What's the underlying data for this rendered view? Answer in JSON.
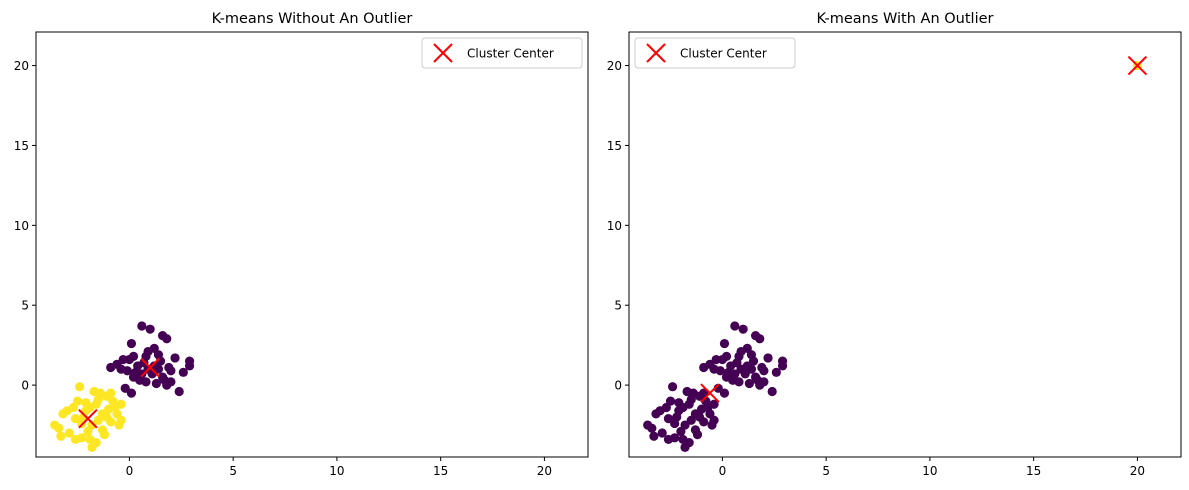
{
  "chart_data": [
    {
      "type": "scatter",
      "title": "K-means Without An Outlier",
      "xlim": [
        -4.5,
        22.1
      ],
      "ylim": [
        -4.5,
        22.1
      ],
      "xticks": [
        0,
        5,
        10,
        15,
        20
      ],
      "yticks": [
        0,
        5,
        10,
        15,
        20
      ],
      "legend": {
        "label": "Cluster Center",
        "position": "top-right"
      },
      "series": [
        {
          "color": "#440154",
          "points": [
            [
              0.2,
              0.5
            ],
            [
              0.8,
              1.8
            ],
            [
              1.2,
              2.3
            ],
            [
              1.6,
              3.1
            ],
            [
              1.0,
              3.5
            ],
            [
              0.6,
              3.7
            ],
            [
              1.8,
              2.9
            ],
            [
              2.2,
              1.7
            ],
            [
              2.9,
              1.5
            ],
            [
              2.9,
              1.2
            ],
            [
              2.4,
              -0.4
            ],
            [
              2.0,
              0.2
            ],
            [
              1.3,
              0.1
            ],
            [
              0.8,
              0.2
            ],
            [
              0.1,
              -0.5
            ],
            [
              -0.2,
              -0.2
            ],
            [
              -0.4,
              1.0
            ],
            [
              -0.9,
              1.1
            ],
            [
              -0.6,
              1.3
            ],
            [
              0.0,
              1.6
            ],
            [
              0.1,
              2.6
            ],
            [
              0.4,
              1.2
            ],
            [
              1.4,
              1.0
            ],
            [
              1.9,
              1.1
            ],
            [
              1.5,
              1.5
            ],
            [
              2.0,
              0.9
            ],
            [
              1.1,
              0.7
            ],
            [
              0.3,
              0.8
            ],
            [
              0.9,
              1.0
            ],
            [
              1.6,
              0.5
            ],
            [
              0.7,
              1.4
            ],
            [
              1.2,
              1.2
            ],
            [
              -0.1,
              0.9
            ],
            [
              0.5,
              0.3
            ],
            [
              1.8,
              0.0
            ],
            [
              2.6,
              0.8
            ],
            [
              0.2,
              1.8
            ],
            [
              1.4,
              1.9
            ],
            [
              0.9,
              2.1
            ],
            [
              -0.3,
              1.6
            ],
            [
              1.7,
              0.3
            ],
            [
              0.6,
              0.7
            ]
          ]
        },
        {
          "color": "#fde725",
          "points": [
            [
              -4.7,
              -1.1
            ],
            [
              -3.6,
              -2.5
            ],
            [
              -3.4,
              -2.7
            ],
            [
              -3.2,
              -1.8
            ],
            [
              -3.0,
              -1.6
            ],
            [
              -2.9,
              -3.0
            ],
            [
              -2.6,
              -3.4
            ],
            [
              -2.5,
              -1.0
            ],
            [
              -2.4,
              -0.1
            ],
            [
              -2.3,
              -2.4
            ],
            [
              -2.2,
              -2.0
            ],
            [
              -2.1,
              -1.6
            ],
            [
              -2.0,
              -2.9
            ],
            [
              -1.9,
              -3.4
            ],
            [
              -1.8,
              -3.9
            ],
            [
              -1.7,
              -0.4
            ],
            [
              -1.6,
              -1.2
            ],
            [
              -1.5,
              -2.2
            ],
            [
              -1.4,
              -0.5
            ],
            [
              -1.3,
              -1.8
            ],
            [
              -1.2,
              -3.1
            ],
            [
              -1.1,
              -0.7
            ],
            [
              -1.0,
              -1.5
            ],
            [
              -0.9,
              -2.3
            ],
            [
              -0.8,
              -1.0
            ],
            [
              -0.7,
              -1.4
            ],
            [
              -0.4,
              -2.2
            ],
            [
              -0.4,
              -1.2
            ],
            [
              -0.5,
              -2.5
            ],
            [
              -1.6,
              -3.6
            ],
            [
              -2.7,
              -1.4
            ],
            [
              -2.1,
              -1.1
            ],
            [
              -1.8,
              -2.5
            ],
            [
              -1.3,
              -2.8
            ],
            [
              -0.9,
              -0.5
            ],
            [
              -2.3,
              -3.3
            ],
            [
              -2.6,
              -2.1
            ],
            [
              -1.1,
              -2.0
            ],
            [
              -1.5,
              -0.9
            ],
            [
              -0.6,
              -1.8
            ],
            [
              -3.3,
              -3.2
            ],
            [
              -1.9,
              -1.4
            ]
          ]
        }
      ],
      "centers": [
        [
          -2.0,
          -2.1
        ],
        [
          1.0,
          1.1
        ]
      ]
    },
    {
      "type": "scatter",
      "title": "K-means With An Outlier",
      "xlim": [
        -4.5,
        22.1
      ],
      "ylim": [
        -4.5,
        22.1
      ],
      "xticks": [
        0,
        5,
        10,
        15,
        20
      ],
      "yticks": [
        0,
        5,
        10,
        15,
        20
      ],
      "legend": {
        "label": "Cluster Center",
        "position": "top-left"
      },
      "series": [
        {
          "color": "#440154",
          "points": [
            [
              0.2,
              0.5
            ],
            [
              0.8,
              1.8
            ],
            [
              1.2,
              2.3
            ],
            [
              1.6,
              3.1
            ],
            [
              1.0,
              3.5
            ],
            [
              0.6,
              3.7
            ],
            [
              1.8,
              2.9
            ],
            [
              2.2,
              1.7
            ],
            [
              2.9,
              1.5
            ],
            [
              2.9,
              1.2
            ],
            [
              2.4,
              -0.4
            ],
            [
              2.0,
              0.2
            ],
            [
              1.3,
              0.1
            ],
            [
              0.8,
              0.2
            ],
            [
              0.1,
              -0.5
            ],
            [
              -0.2,
              -0.2
            ],
            [
              -0.4,
              1.0
            ],
            [
              -0.9,
              1.1
            ],
            [
              -0.6,
              1.3
            ],
            [
              0.0,
              1.6
            ],
            [
              0.1,
              2.6
            ],
            [
              0.4,
              1.2
            ],
            [
              1.4,
              1.0
            ],
            [
              1.9,
              1.1
            ],
            [
              1.5,
              1.5
            ],
            [
              2.0,
              0.9
            ],
            [
              1.1,
              0.7
            ],
            [
              0.3,
              0.8
            ],
            [
              0.9,
              1.0
            ],
            [
              1.6,
              0.5
            ],
            [
              0.7,
              1.4
            ],
            [
              1.2,
              1.2
            ],
            [
              -0.1,
              0.9
            ],
            [
              0.5,
              0.3
            ],
            [
              1.8,
              0.0
            ],
            [
              2.6,
              0.8
            ],
            [
              0.2,
              1.8
            ],
            [
              1.4,
              1.9
            ],
            [
              0.9,
              2.1
            ],
            [
              -0.3,
              1.6
            ],
            [
              1.7,
              0.3
            ],
            [
              0.6,
              0.7
            ],
            [
              -4.7,
              -1.1
            ],
            [
              -3.6,
              -2.5
            ],
            [
              -3.4,
              -2.7
            ],
            [
              -3.2,
              -1.8
            ],
            [
              -3.0,
              -1.6
            ],
            [
              -2.9,
              -3.0
            ],
            [
              -2.6,
              -3.4
            ],
            [
              -2.5,
              -1.0
            ],
            [
              -2.4,
              -0.1
            ],
            [
              -2.3,
              -2.4
            ],
            [
              -2.2,
              -2.0
            ],
            [
              -2.1,
              -1.6
            ],
            [
              -2.0,
              -2.9
            ],
            [
              -1.9,
              -3.4
            ],
            [
              -1.8,
              -3.9
            ],
            [
              -1.7,
              -0.4
            ],
            [
              -1.6,
              -1.2
            ],
            [
              -1.5,
              -2.2
            ],
            [
              -1.4,
              -0.5
            ],
            [
              -1.3,
              -1.8
            ],
            [
              -1.2,
              -3.1
            ],
            [
              -1.1,
              -0.7
            ],
            [
              -1.0,
              -1.5
            ],
            [
              -0.9,
              -2.3
            ],
            [
              -0.8,
              -1.0
            ],
            [
              -0.7,
              -1.4
            ],
            [
              -0.4,
              -2.2
            ],
            [
              -0.4,
              -1.2
            ],
            [
              -0.5,
              -2.5
            ],
            [
              -1.6,
              -3.6
            ],
            [
              -2.7,
              -1.4
            ],
            [
              -2.1,
              -1.1
            ],
            [
              -1.8,
              -2.5
            ],
            [
              -1.3,
              -2.8
            ],
            [
              -0.9,
              -0.5
            ],
            [
              -2.3,
              -3.3
            ],
            [
              -2.6,
              -2.1
            ],
            [
              -1.1,
              -2.0
            ],
            [
              -1.5,
              -0.9
            ],
            [
              -0.6,
              -1.8
            ],
            [
              -3.3,
              -3.2
            ],
            [
              -1.9,
              -1.4
            ]
          ]
        },
        {
          "color": "#fde725",
          "points": [
            [
              20.0,
              20.0
            ]
          ]
        }
      ],
      "centers": [
        [
          -0.6,
          -0.5
        ],
        [
          20.0,
          20.0
        ]
      ]
    }
  ],
  "marker_color": "#ff0000"
}
